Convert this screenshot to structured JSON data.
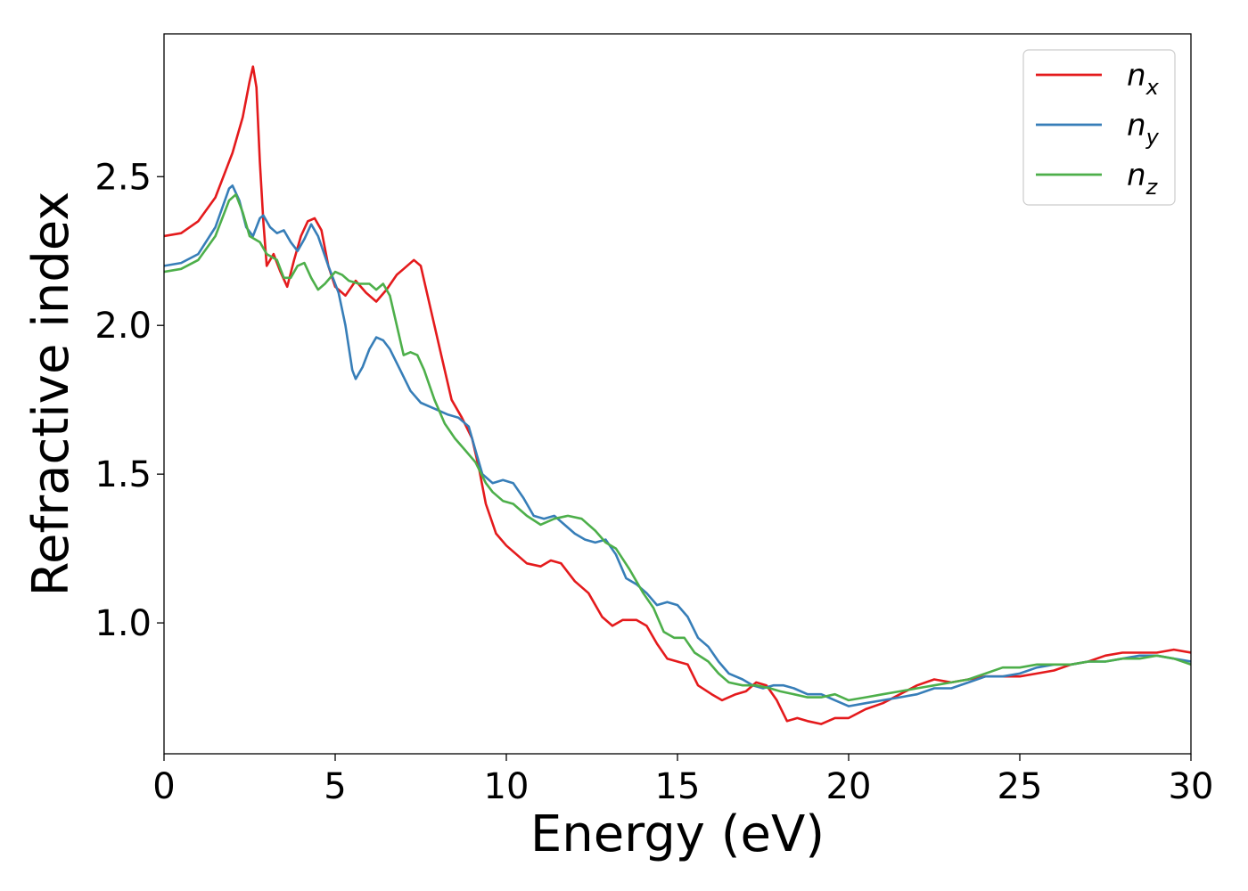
{
  "chart_data": {
    "type": "line",
    "xlabel": "Energy (eV)",
    "ylabel": "Refractive index",
    "xlim": [
      0,
      30
    ],
    "ylim": [
      0.56,
      2.98
    ],
    "xticks": [
      0,
      5,
      10,
      15,
      20,
      25,
      30
    ],
    "yticks": [
      1.0,
      1.5,
      2.0,
      2.5
    ],
    "ytick_labels": [
      "1.0",
      "1.5",
      "2.0",
      "2.5"
    ],
    "grid": false,
    "legend_position": "top-right",
    "series": [
      {
        "name": "n_x",
        "label_main": "n",
        "label_sub": "x",
        "color": "#e41a1c",
        "points": [
          [
            0,
            2.3
          ],
          [
            0.5,
            2.31
          ],
          [
            1,
            2.35
          ],
          [
            1.5,
            2.43
          ],
          [
            2,
            2.58
          ],
          [
            2.3,
            2.7
          ],
          [
            2.5,
            2.82
          ],
          [
            2.6,
            2.87
          ],
          [
            2.7,
            2.8
          ],
          [
            2.8,
            2.55
          ],
          [
            2.9,
            2.35
          ],
          [
            3.0,
            2.2
          ],
          [
            3.2,
            2.24
          ],
          [
            3.4,
            2.18
          ],
          [
            3.6,
            2.13
          ],
          [
            3.8,
            2.22
          ],
          [
            4.0,
            2.3
          ],
          [
            4.2,
            2.35
          ],
          [
            4.4,
            2.36
          ],
          [
            4.6,
            2.32
          ],
          [
            4.8,
            2.2
          ],
          [
            5.0,
            2.13
          ],
          [
            5.3,
            2.1
          ],
          [
            5.6,
            2.15
          ],
          [
            5.9,
            2.11
          ],
          [
            6.2,
            2.08
          ],
          [
            6.5,
            2.12
          ],
          [
            6.8,
            2.17
          ],
          [
            7.0,
            2.19
          ],
          [
            7.3,
            2.22
          ],
          [
            7.5,
            2.2
          ],
          [
            7.8,
            2.05
          ],
          [
            8.1,
            1.9
          ],
          [
            8.4,
            1.75
          ],
          [
            8.7,
            1.69
          ],
          [
            9.0,
            1.62
          ],
          [
            9.2,
            1.52
          ],
          [
            9.4,
            1.4
          ],
          [
            9.7,
            1.3
          ],
          [
            10.0,
            1.26
          ],
          [
            10.3,
            1.23
          ],
          [
            10.6,
            1.2
          ],
          [
            11.0,
            1.19
          ],
          [
            11.3,
            1.21
          ],
          [
            11.6,
            1.2
          ],
          [
            12.0,
            1.14
          ],
          [
            12.4,
            1.1
          ],
          [
            12.8,
            1.02
          ],
          [
            13.1,
            0.99
          ],
          [
            13.4,
            1.01
          ],
          [
            13.8,
            1.01
          ],
          [
            14.1,
            0.99
          ],
          [
            14.4,
            0.93
          ],
          [
            14.7,
            0.88
          ],
          [
            15.0,
            0.87
          ],
          [
            15.3,
            0.86
          ],
          [
            15.6,
            0.79
          ],
          [
            16.0,
            0.76
          ],
          [
            16.3,
            0.74
          ],
          [
            16.7,
            0.76
          ],
          [
            17.0,
            0.77
          ],
          [
            17.3,
            0.8
          ],
          [
            17.6,
            0.79
          ],
          [
            17.9,
            0.74
          ],
          [
            18.2,
            0.67
          ],
          [
            18.5,
            0.68
          ],
          [
            18.8,
            0.67
          ],
          [
            19.2,
            0.66
          ],
          [
            19.6,
            0.68
          ],
          [
            20.0,
            0.68
          ],
          [
            20.5,
            0.71
          ],
          [
            21.0,
            0.73
          ],
          [
            21.5,
            0.76
          ],
          [
            22.0,
            0.79
          ],
          [
            22.5,
            0.81
          ],
          [
            23.0,
            0.8
          ],
          [
            23.5,
            0.81
          ],
          [
            24.0,
            0.82
          ],
          [
            24.5,
            0.82
          ],
          [
            25.0,
            0.82
          ],
          [
            25.5,
            0.83
          ],
          [
            26.0,
            0.84
          ],
          [
            26.5,
            0.86
          ],
          [
            27.0,
            0.87
          ],
          [
            27.5,
            0.89
          ],
          [
            28.0,
            0.9
          ],
          [
            28.5,
            0.9
          ],
          [
            29.0,
            0.9
          ],
          [
            29.5,
            0.91
          ],
          [
            30.0,
            0.9
          ]
        ]
      },
      {
        "name": "n_y",
        "label_main": "n",
        "label_sub": "y",
        "color": "#377eb8",
        "points": [
          [
            0,
            2.2
          ],
          [
            0.5,
            2.21
          ],
          [
            1,
            2.24
          ],
          [
            1.5,
            2.33
          ],
          [
            1.9,
            2.46
          ],
          [
            2.0,
            2.47
          ],
          [
            2.2,
            2.42
          ],
          [
            2.4,
            2.33
          ],
          [
            2.6,
            2.3
          ],
          [
            2.8,
            2.36
          ],
          [
            2.9,
            2.37
          ],
          [
            3.1,
            2.33
          ],
          [
            3.3,
            2.31
          ],
          [
            3.5,
            2.32
          ],
          [
            3.7,
            2.28
          ],
          [
            3.9,
            2.25
          ],
          [
            4.1,
            2.29
          ],
          [
            4.3,
            2.34
          ],
          [
            4.5,
            2.3
          ],
          [
            4.8,
            2.2
          ],
          [
            5.1,
            2.11
          ],
          [
            5.3,
            2.0
          ],
          [
            5.5,
            1.85
          ],
          [
            5.6,
            1.82
          ],
          [
            5.8,
            1.86
          ],
          [
            6.0,
            1.92
          ],
          [
            6.2,
            1.96
          ],
          [
            6.4,
            1.95
          ],
          [
            6.6,
            1.92
          ],
          [
            6.9,
            1.85
          ],
          [
            7.2,
            1.78
          ],
          [
            7.5,
            1.74
          ],
          [
            7.9,
            1.72
          ],
          [
            8.3,
            1.7
          ],
          [
            8.6,
            1.69
          ],
          [
            8.9,
            1.66
          ],
          [
            9.1,
            1.58
          ],
          [
            9.3,
            1.5
          ],
          [
            9.6,
            1.47
          ],
          [
            9.9,
            1.48
          ],
          [
            10.2,
            1.47
          ],
          [
            10.5,
            1.42
          ],
          [
            10.8,
            1.36
          ],
          [
            11.1,
            1.35
          ],
          [
            11.4,
            1.36
          ],
          [
            11.7,
            1.33
          ],
          [
            12.0,
            1.3
          ],
          [
            12.3,
            1.28
          ],
          [
            12.6,
            1.27
          ],
          [
            12.9,
            1.28
          ],
          [
            13.2,
            1.23
          ],
          [
            13.5,
            1.15
          ],
          [
            13.8,
            1.13
          ],
          [
            14.1,
            1.1
          ],
          [
            14.4,
            1.06
          ],
          [
            14.7,
            1.07
          ],
          [
            15.0,
            1.06
          ],
          [
            15.3,
            1.02
          ],
          [
            15.6,
            0.95
          ],
          [
            15.9,
            0.92
          ],
          [
            16.2,
            0.87
          ],
          [
            16.5,
            0.83
          ],
          [
            16.9,
            0.81
          ],
          [
            17.2,
            0.79
          ],
          [
            17.5,
            0.78
          ],
          [
            17.8,
            0.79
          ],
          [
            18.1,
            0.79
          ],
          [
            18.4,
            0.78
          ],
          [
            18.8,
            0.76
          ],
          [
            19.2,
            0.76
          ],
          [
            19.6,
            0.74
          ],
          [
            20.0,
            0.72
          ],
          [
            20.5,
            0.73
          ],
          [
            21.0,
            0.74
          ],
          [
            21.5,
            0.75
          ],
          [
            22.0,
            0.76
          ],
          [
            22.5,
            0.78
          ],
          [
            23.0,
            0.78
          ],
          [
            23.5,
            0.8
          ],
          [
            24.0,
            0.82
          ],
          [
            24.5,
            0.82
          ],
          [
            25.0,
            0.83
          ],
          [
            25.5,
            0.85
          ],
          [
            26.0,
            0.86
          ],
          [
            26.5,
            0.86
          ],
          [
            27.0,
            0.87
          ],
          [
            27.5,
            0.87
          ],
          [
            28.0,
            0.88
          ],
          [
            28.5,
            0.89
          ],
          [
            29.0,
            0.89
          ],
          [
            29.5,
            0.88
          ],
          [
            30.0,
            0.87
          ]
        ]
      },
      {
        "name": "n_z",
        "label_main": "n",
        "label_sub": "z",
        "color": "#4daf4a",
        "points": [
          [
            0,
            2.18
          ],
          [
            0.5,
            2.19
          ],
          [
            1,
            2.22
          ],
          [
            1.5,
            2.3
          ],
          [
            1.9,
            2.42
          ],
          [
            2.1,
            2.44
          ],
          [
            2.3,
            2.38
          ],
          [
            2.5,
            2.3
          ],
          [
            2.8,
            2.28
          ],
          [
            3.0,
            2.24
          ],
          [
            3.3,
            2.22
          ],
          [
            3.5,
            2.16
          ],
          [
            3.7,
            2.16
          ],
          [
            3.9,
            2.2
          ],
          [
            4.1,
            2.21
          ],
          [
            4.3,
            2.16
          ],
          [
            4.5,
            2.12
          ],
          [
            4.7,
            2.14
          ],
          [
            5.0,
            2.18
          ],
          [
            5.2,
            2.17
          ],
          [
            5.4,
            2.15
          ],
          [
            5.7,
            2.14
          ],
          [
            6.0,
            2.14
          ],
          [
            6.2,
            2.12
          ],
          [
            6.4,
            2.14
          ],
          [
            6.6,
            2.1
          ],
          [
            6.8,
            2.0
          ],
          [
            7.0,
            1.9
          ],
          [
            7.2,
            1.91
          ],
          [
            7.4,
            1.9
          ],
          [
            7.6,
            1.85
          ],
          [
            7.9,
            1.75
          ],
          [
            8.2,
            1.67
          ],
          [
            8.5,
            1.62
          ],
          [
            8.8,
            1.58
          ],
          [
            9.1,
            1.54
          ],
          [
            9.4,
            1.47
          ],
          [
            9.6,
            1.44
          ],
          [
            9.9,
            1.41
          ],
          [
            10.2,
            1.4
          ],
          [
            10.6,
            1.36
          ],
          [
            11.0,
            1.33
          ],
          [
            11.4,
            1.35
          ],
          [
            11.8,
            1.36
          ],
          [
            12.2,
            1.35
          ],
          [
            12.6,
            1.31
          ],
          [
            12.9,
            1.27
          ],
          [
            13.2,
            1.25
          ],
          [
            13.6,
            1.18
          ],
          [
            14.0,
            1.1
          ],
          [
            14.3,
            1.05
          ],
          [
            14.6,
            0.97
          ],
          [
            14.9,
            0.95
          ],
          [
            15.2,
            0.95
          ],
          [
            15.5,
            0.9
          ],
          [
            15.9,
            0.87
          ],
          [
            16.2,
            0.83
          ],
          [
            16.5,
            0.8
          ],
          [
            16.9,
            0.79
          ],
          [
            17.3,
            0.79
          ],
          [
            17.7,
            0.78
          ],
          [
            18.0,
            0.77
          ],
          [
            18.4,
            0.76
          ],
          [
            18.8,
            0.75
          ],
          [
            19.2,
            0.75
          ],
          [
            19.6,
            0.76
          ],
          [
            20.0,
            0.74
          ],
          [
            20.5,
            0.75
          ],
          [
            21.0,
            0.76
          ],
          [
            21.5,
            0.77
          ],
          [
            22.0,
            0.78
          ],
          [
            22.5,
            0.79
          ],
          [
            23.0,
            0.8
          ],
          [
            23.5,
            0.81
          ],
          [
            24.0,
            0.83
          ],
          [
            24.5,
            0.85
          ],
          [
            25.0,
            0.85
          ],
          [
            25.5,
            0.86
          ],
          [
            26.0,
            0.86
          ],
          [
            26.5,
            0.86
          ],
          [
            27.0,
            0.87
          ],
          [
            27.5,
            0.87
          ],
          [
            28.0,
            0.88
          ],
          [
            28.5,
            0.88
          ],
          [
            29.0,
            0.89
          ],
          [
            29.5,
            0.88
          ],
          [
            30.0,
            0.86
          ]
        ]
      }
    ]
  }
}
